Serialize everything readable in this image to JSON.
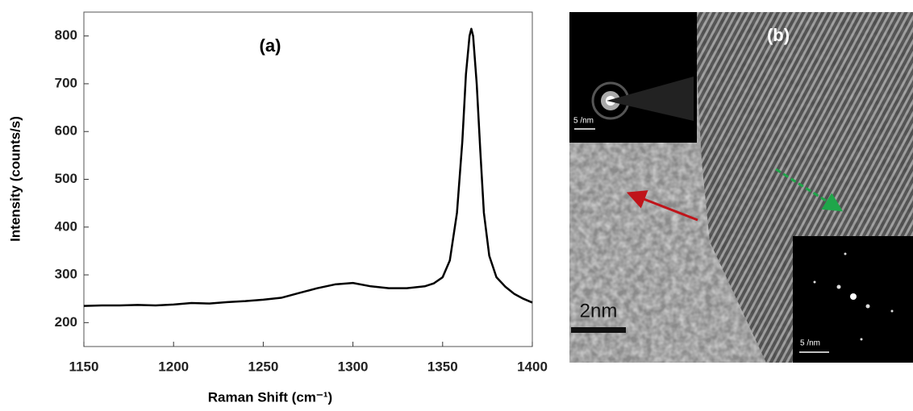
{
  "chart_data": {
    "type": "line",
    "annotation": "(a)",
    "x_label": "Raman Shift (cm⁻¹)",
    "y_label": "Intensity (counts/s)",
    "x": [
      1150,
      1160,
      1170,
      1180,
      1190,
      1200,
      1210,
      1220,
      1230,
      1240,
      1250,
      1260,
      1270,
      1280,
      1290,
      1300,
      1310,
      1320,
      1330,
      1340,
      1345,
      1350,
      1354,
      1358,
      1361,
      1363,
      1365,
      1366,
      1367,
      1369,
      1371,
      1373,
      1376,
      1380,
      1385,
      1390,
      1395,
      1400
    ],
    "series": [
      {
        "color": "#000000",
        "values": [
          235,
          236,
          236,
          237,
          236,
          238,
          241,
          240,
          243,
          245,
          248,
          252,
          262,
          272,
          280,
          283,
          276,
          272,
          272,
          276,
          282,
          295,
          330,
          430,
          580,
          720,
          800,
          815,
          800,
          700,
          560,
          430,
          340,
          295,
          275,
          260,
          250,
          242
        ]
      }
    ],
    "xlim": [
      1150,
      1400
    ],
    "xticks": [
      1150,
      1200,
      1250,
      1300,
      1350,
      1400
    ],
    "ylim": [
      150,
      850
    ],
    "yticks": [
      200,
      300,
      400,
      500,
      600,
      700,
      800
    ],
    "grid": false
  },
  "panel_b": {
    "label": "(b)",
    "scale_bar": "2nm",
    "inset_top_scale": "5 /nm",
    "inset_bottom_scale": "5 /nm"
  }
}
